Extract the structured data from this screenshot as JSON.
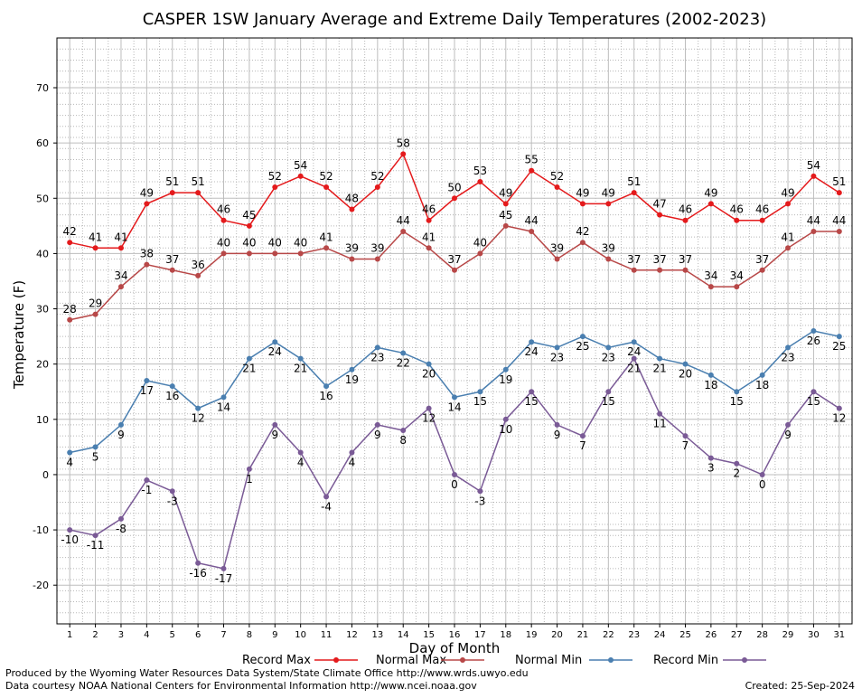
{
  "chart_data": {
    "type": "line",
    "title": "CASPER 1SW January Average and Extreme Daily Temperatures (2002-2023)",
    "xlabel": "Day of Month",
    "ylabel": "Temperature (F)",
    "xlim": [
      0.5,
      31.5
    ],
    "ylim": [
      -27,
      79
    ],
    "yticks": [
      -20,
      -10,
      0,
      10,
      20,
      30,
      40,
      50,
      60,
      70
    ],
    "x": [
      1,
      2,
      3,
      4,
      5,
      6,
      7,
      8,
      9,
      10,
      11,
      12,
      13,
      14,
      15,
      16,
      17,
      18,
      19,
      20,
      21,
      22,
      23,
      24,
      25,
      26,
      27,
      28,
      29,
      30,
      31
    ],
    "grid": true,
    "legend_position": "bottom",
    "series": [
      {
        "name": "Record Max",
        "color": "#e41a1c",
        "label_position": "above",
        "values": [
          42,
          41,
          41,
          49,
          51,
          51,
          46,
          45,
          52,
          54,
          52,
          48,
          52,
          58,
          46,
          50,
          53,
          49,
          55,
          52,
          49,
          49,
          51,
          47,
          46,
          49,
          46,
          46,
          49,
          54,
          51
        ]
      },
      {
        "name": "Normal Max",
        "color": "#b84848",
        "label_position": "above",
        "values": [
          28,
          29,
          34,
          38,
          37,
          36,
          40,
          40,
          40,
          40,
          41,
          39,
          39,
          44,
          41,
          37,
          40,
          45,
          44,
          39,
          42,
          39,
          37,
          37,
          37,
          34,
          34,
          37,
          41,
          44,
          44
        ]
      },
      {
        "name": "Normal Min",
        "color": "#4a7fb0",
        "label_position": "below",
        "values": [
          4,
          5,
          9,
          17,
          16,
          12,
          14,
          21,
          24,
          21,
          16,
          19,
          23,
          22,
          20,
          14,
          15,
          19,
          24,
          23,
          25,
          23,
          24,
          21,
          20,
          18,
          15,
          18,
          23,
          26,
          25
        ]
      },
      {
        "name": "Record Min",
        "color": "#7a5a96",
        "label_position": "below",
        "values": [
          -10,
          -11,
          -8,
          -1,
          -3,
          -16,
          -17,
          1,
          9,
          4,
          -4,
          4,
          9,
          8,
          12,
          0,
          -3,
          10,
          15,
          9,
          7,
          15,
          21,
          11,
          7,
          3,
          2,
          0,
          9,
          15,
          12
        ]
      }
    ]
  },
  "footer": {
    "produced_by": "Produced by the Wyoming Water Resources Data System/State Climate Office http://www.wrds.uwyo.edu",
    "data_courtesy": "Data courtesy NOAA National Centers for Environmental Information http://www.ncei.noaa.gov",
    "created": "Created:  25-Sep-2024"
  }
}
